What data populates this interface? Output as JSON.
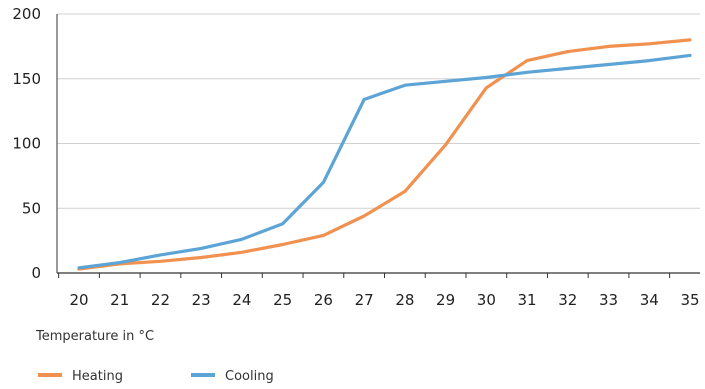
{
  "chart_data": {
    "type": "line",
    "title": "",
    "xlabel": "Temperature in °C",
    "ylabel": "",
    "x": [
      20,
      21,
      22,
      23,
      24,
      25,
      26,
      27,
      28,
      29,
      30,
      31,
      32,
      33,
      34,
      35
    ],
    "xticks": [
      "20",
      "21",
      "22",
      "23",
      "24",
      "25",
      "26",
      "27",
      "28",
      "29",
      "30",
      "31",
      "32",
      "33",
      "34",
      "35"
    ],
    "ylim": [
      0,
      200
    ],
    "yticks": [
      0,
      50,
      100,
      150,
      200
    ],
    "grid": true,
    "legend": "bottom-left",
    "series": [
      {
        "name": "Heating",
        "color": "#f0914f",
        "values": [
          3,
          7,
          9,
          12,
          16,
          22,
          29,
          44,
          63,
          99,
          143,
          164,
          171,
          175,
          177,
          180
        ]
      },
      {
        "name": "Cooling",
        "color": "#5ca3d6",
        "values": [
          4,
          8,
          14,
          19,
          26,
          38,
          70,
          134,
          145,
          148,
          151,
          155,
          158,
          161,
          164,
          168
        ]
      }
    ]
  }
}
